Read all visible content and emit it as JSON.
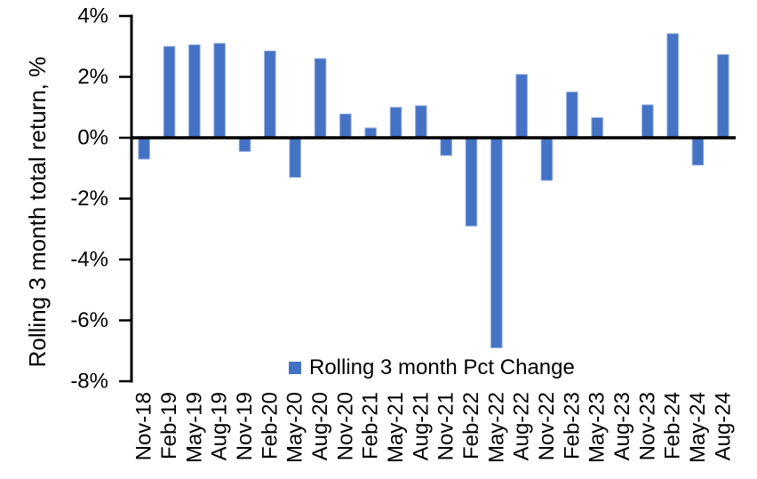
{
  "page": {
    "background": "#FFFFFF"
  },
  "chart_data": {
    "type": "bar",
    "title": "",
    "xlabel": "",
    "ylabel": "Rolling 3 month total return, %",
    "ylim": [
      -8,
      4
    ],
    "grid": false,
    "axis_color": "#000000",
    "text_color": "#000000",
    "yticks": [
      {
        "value": 4,
        "label": "4%"
      },
      {
        "value": 2,
        "label": "2%"
      },
      {
        "value": 0,
        "label": "0%"
      },
      {
        "value": -2,
        "label": "-2%"
      },
      {
        "value": -4,
        "label": "-4%"
      },
      {
        "value": -6,
        "label": "-6%"
      },
      {
        "value": -8,
        "label": "-8%"
      }
    ],
    "categories": [
      "Nov-18",
      "Feb-19",
      "May-19",
      "Aug-19",
      "Nov-19",
      "Feb-20",
      "May-20",
      "Aug-20",
      "Nov-20",
      "Feb-21",
      "May-21",
      "Aug-21",
      "Nov-21",
      "Feb-22",
      "May-22",
      "Aug-22",
      "Nov-22",
      "Feb-23",
      "May-23",
      "Aug-23",
      "Nov-23",
      "Feb-24",
      "May-24",
      "Aug-24"
    ],
    "series": [
      {
        "name": "Rolling 3 month Pct Change",
        "color": "#4472C4",
        "border_color": "#8FAADC",
        "values": [
          -0.7,
          3.0,
          3.05,
          3.1,
          -0.45,
          2.85,
          -1.3,
          2.6,
          0.78,
          0.32,
          1.0,
          1.05,
          -0.58,
          -2.9,
          -6.9,
          2.08,
          -1.4,
          1.5,
          0.66,
          0.0,
          1.08,
          3.42,
          -0.9,
          2.73
        ]
      }
    ],
    "legend": {
      "position": "bottom",
      "label": "Rolling 3 month Pct Change",
      "swatch_color": "#4472C4"
    }
  }
}
